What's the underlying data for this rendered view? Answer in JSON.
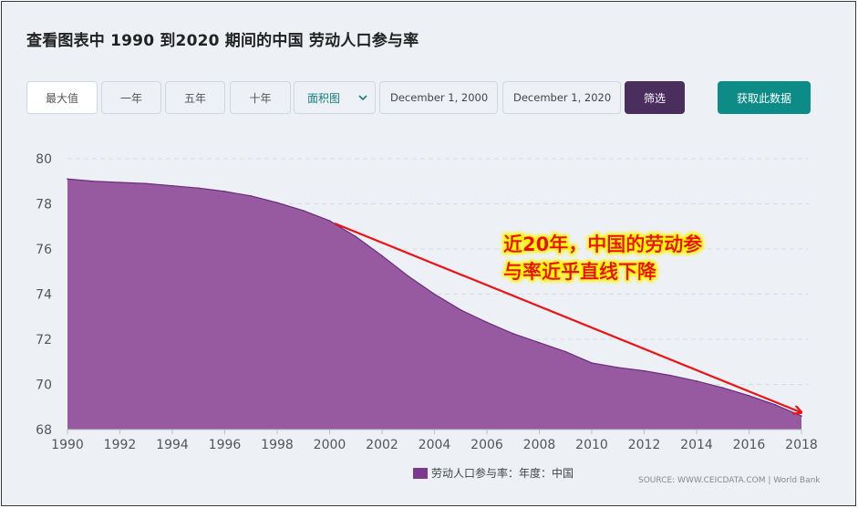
{
  "header": {
    "title": "查看图表中 1990 到2020 期间的中国 劳动人口参与率"
  },
  "toolbar": {
    "ranges": [
      "最大值",
      "一年",
      "五年",
      "十年"
    ],
    "chart_type": "面积图",
    "start_date": "December 1, 2000",
    "end_date": "December 1, 2020",
    "filter_label": "筛选",
    "get_data_label": "获取此数据"
  },
  "annotation": {
    "line1": "近20年，中国的劳动参",
    "line2": "与率近乎直线下降",
    "color": "#ee1111"
  },
  "legend_label": "劳动人口参与率：年度：中国",
  "source": "SOURCE: WWW.CEICDATA.COM | World Bank",
  "chart_data": {
    "type": "area",
    "x": [
      1990,
      1991,
      1992,
      1993,
      1994,
      1995,
      1996,
      1997,
      1998,
      1999,
      2000,
      2001,
      2002,
      2003,
      2004,
      2005,
      2006,
      2007,
      2008,
      2009,
      2010,
      2011,
      2012,
      2013,
      2014,
      2015,
      2016,
      2017,
      2018
    ],
    "series": [
      {
        "name": "劳动人口参与率：年度：中国",
        "values": [
          79.1,
          79.0,
          78.95,
          78.9,
          78.8,
          78.7,
          78.55,
          78.35,
          78.05,
          77.7,
          77.25,
          76.55,
          75.7,
          74.8,
          74.0,
          73.3,
          72.75,
          72.25,
          71.85,
          71.45,
          70.95,
          70.75,
          70.6,
          70.4,
          70.15,
          69.85,
          69.5,
          69.1,
          68.6
        ]
      }
    ],
    "ylim": [
      68,
      80
    ],
    "xlim": [
      1990,
      2018
    ],
    "yticks": [
      68,
      70,
      72,
      74,
      76,
      78,
      80
    ],
    "xticks": [
      1990,
      1992,
      1994,
      1996,
      1998,
      2000,
      2002,
      2004,
      2006,
      2008,
      2010,
      2012,
      2014,
      2016,
      2018
    ],
    "grid": true,
    "legend_position": "bottom",
    "colors": {
      "fill": "#975aa0",
      "line": "#6a2c7e",
      "grid": "#d6dce4",
      "axis_text": "#555555"
    }
  }
}
